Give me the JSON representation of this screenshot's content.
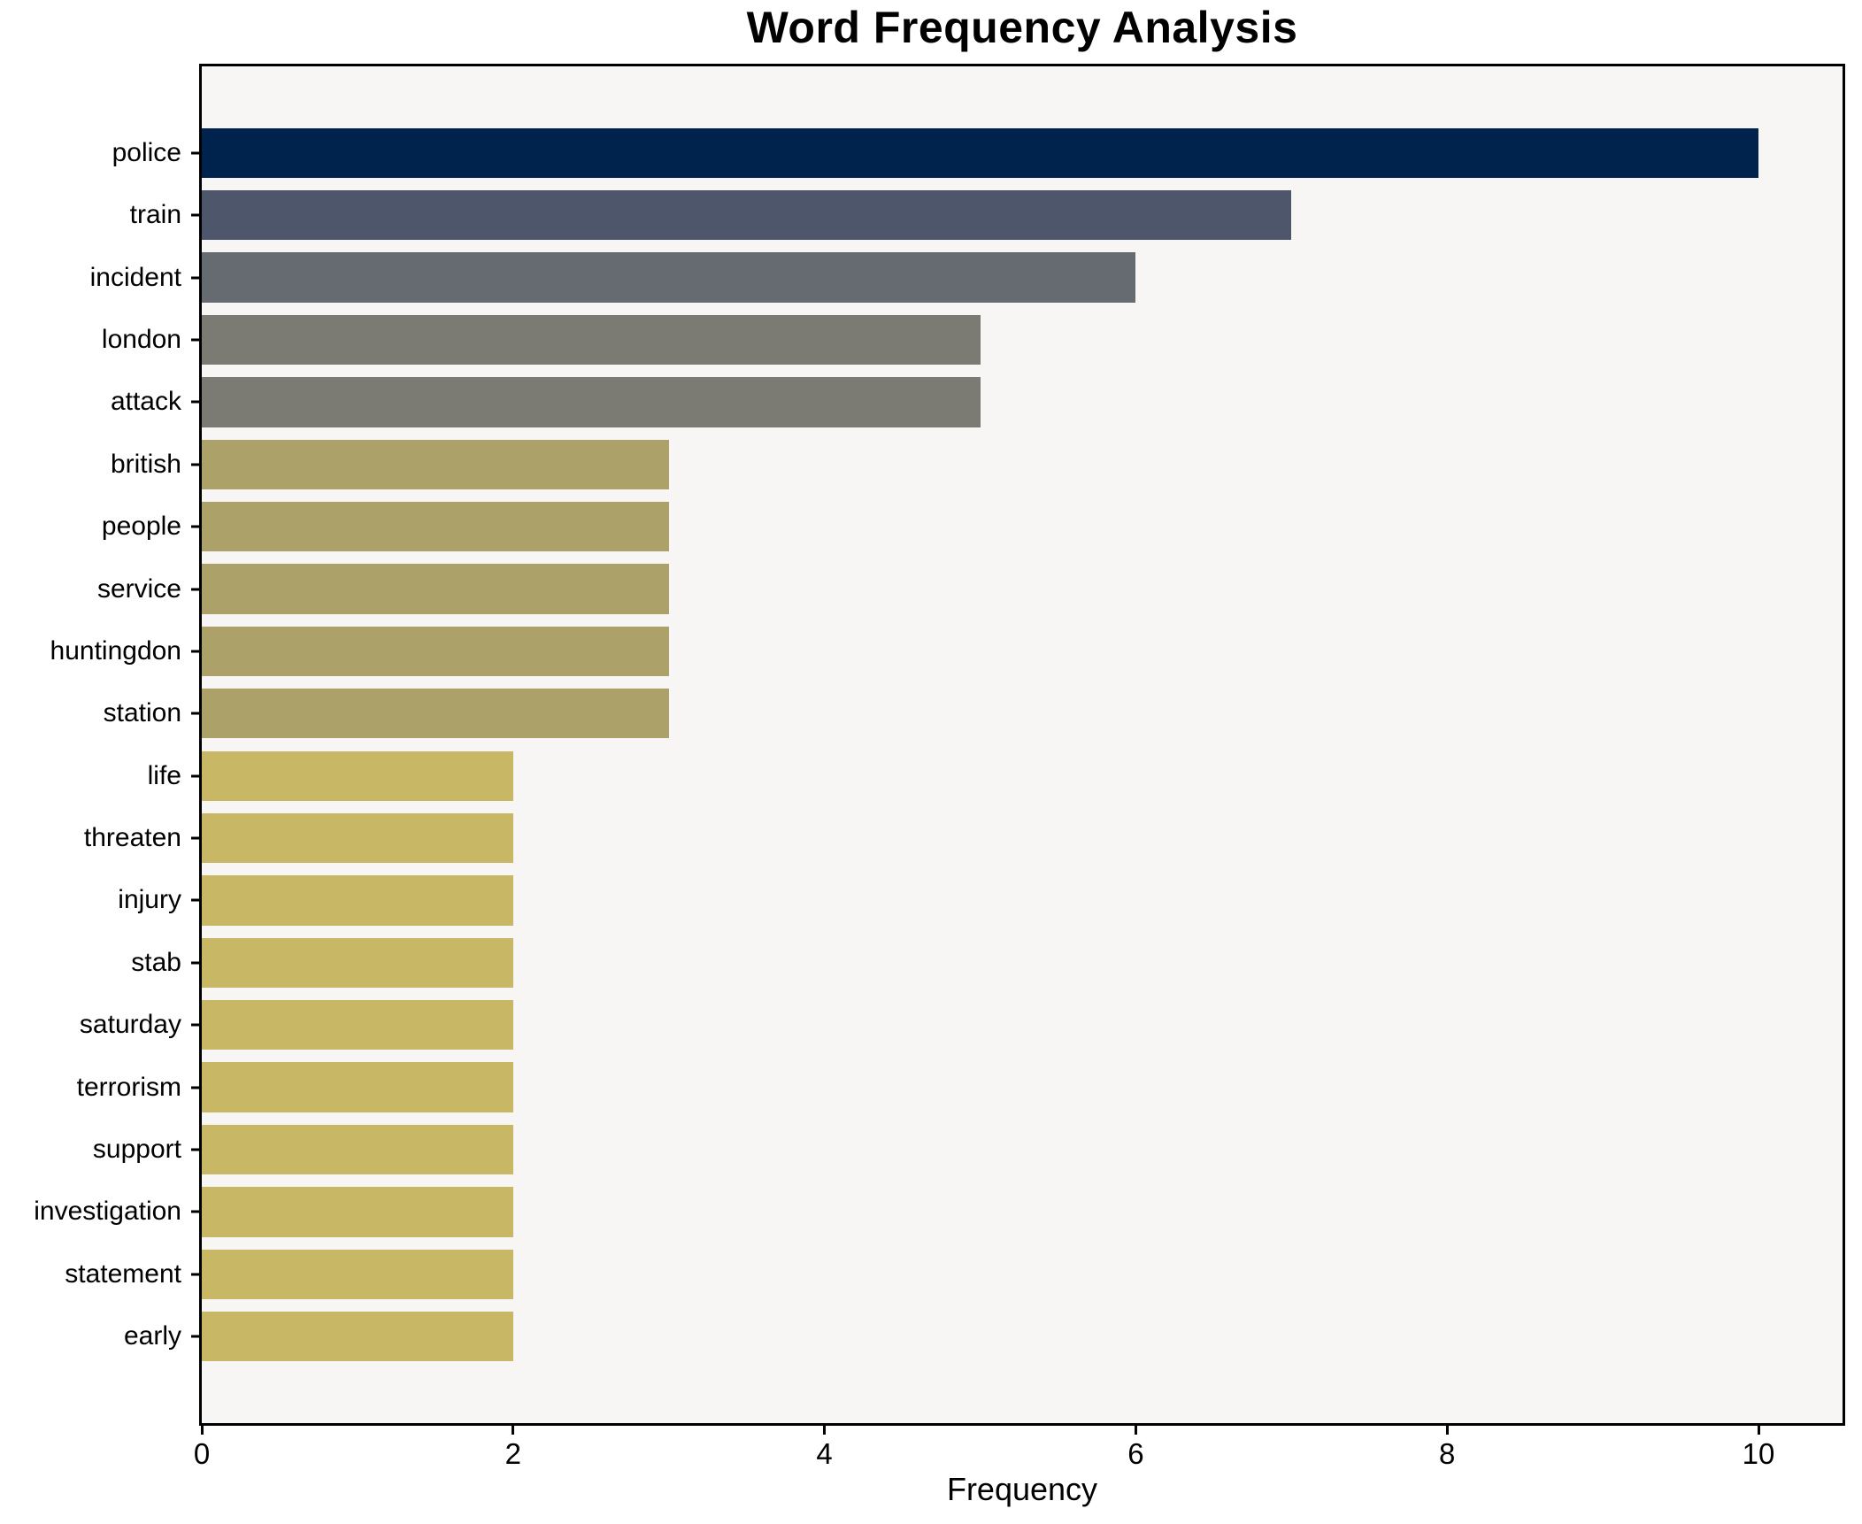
{
  "header": {
    "title": "Word Frequency Analysis"
  },
  "axes": {
    "xlabel": "Frequency"
  },
  "chart_data": {
    "type": "bar",
    "orientation": "horizontal",
    "title": "Word Frequency Analysis",
    "xlabel": "Frequency",
    "ylabel": "",
    "categories": [
      "police",
      "train",
      "incident",
      "london",
      "attack",
      "british",
      "people",
      "service",
      "huntingdon",
      "station",
      "life",
      "threaten",
      "injury",
      "stab",
      "saturday",
      "terrorism",
      "support",
      "investigation",
      "statement",
      "early"
    ],
    "values": [
      10,
      7,
      6,
      5,
      5,
      3,
      3,
      3,
      3,
      3,
      2,
      2,
      2,
      2,
      2,
      2,
      2,
      2,
      2,
      2
    ],
    "bar_colors": [
      "#00234e",
      "#4e566b",
      "#666b72",
      "#7b7a73",
      "#7b7a73",
      "#aca269",
      "#aca269",
      "#aca269",
      "#aca269",
      "#aca269",
      "#c8b765",
      "#c8b765",
      "#c8b765",
      "#c8b765",
      "#c8b765",
      "#c8b765",
      "#c8b765",
      "#c8b765",
      "#c8b765",
      "#c8b765"
    ],
    "xticks": [
      0,
      2,
      4,
      6,
      8,
      10
    ],
    "xlim": [
      0,
      10.54
    ],
    "grid": false,
    "legend": null,
    "bar_rel_height": 0.8,
    "colors": {
      "plot_background": "#f7f6f4",
      "figure_background": "#ffffff",
      "spine": "#000000",
      "text": "#000000"
    }
  }
}
